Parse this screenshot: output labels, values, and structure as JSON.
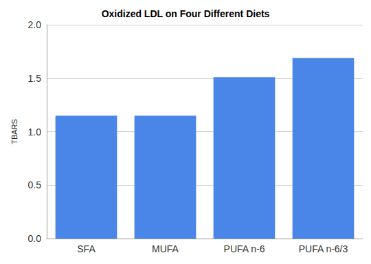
{
  "chart_data": {
    "type": "bar",
    "title": "Oxidized LDL on Four Different Diets",
    "y_label": "TBARS",
    "categories": [
      "SFA",
      "MUFA",
      "PUFA n-6",
      "PUFA n-6/3"
    ],
    "values": [
      1.15,
      1.15,
      1.51,
      1.69
    ],
    "color": "#4a86e8",
    "ylim": [
      0,
      2
    ],
    "yticks": [
      {
        "value": 0,
        "label": "0.0"
      },
      0.5,
      {
        "value": 1,
        "label": "1.0"
      },
      1.5,
      {
        "value": 2,
        "label": "2.0"
      }
    ],
    "grid": true
  }
}
